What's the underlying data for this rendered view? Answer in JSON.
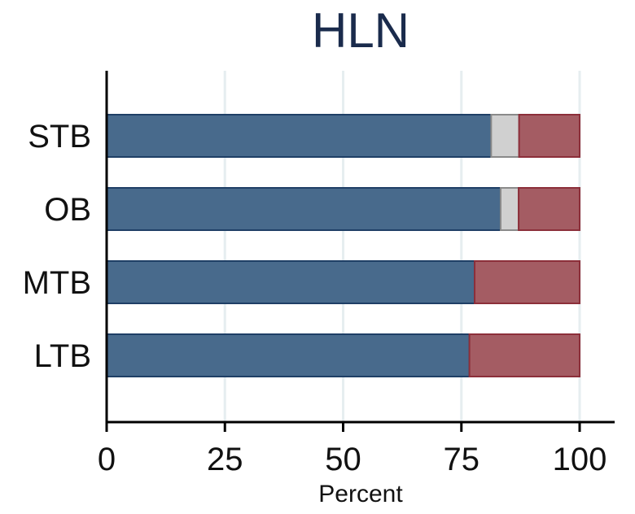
{
  "chart_data": {
    "type": "bar",
    "orientation": "horizontal",
    "stacked": true,
    "title": "HLN",
    "xlabel": "Percent",
    "ylabel": "",
    "xlim": [
      0,
      100
    ],
    "xticks": [
      "0",
      "25",
      "50",
      "75",
      "100"
    ],
    "categories": [
      "STB",
      "OB",
      "MTB",
      "LTB"
    ],
    "grid": true,
    "legend": "none",
    "series": [
      {
        "values": [
          81.3,
          83.3,
          77.8,
          76.7
        ],
        "color": "#486a8c"
      },
      {
        "values": [
          5.9,
          3.8,
          0.0,
          0.0
        ],
        "color": "#d0d0d0"
      },
      {
        "values": [
          12.8,
          12.9,
          22.2,
          23.3
        ],
        "color": "#a45c63"
      }
    ]
  },
  "colors": {
    "title": "#1a2b4c",
    "grid": "#e6eef0",
    "axis": "#000000"
  }
}
